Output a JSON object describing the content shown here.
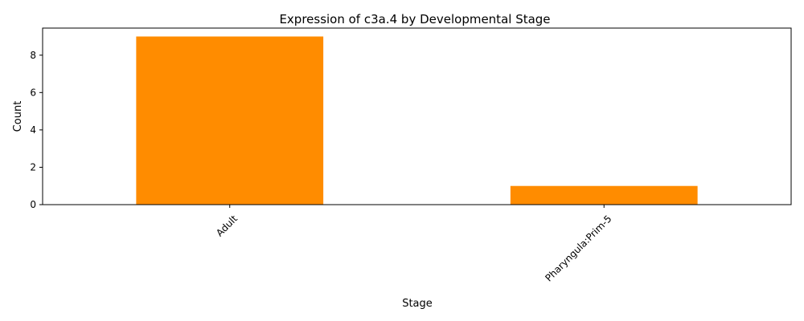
{
  "chart_data": {
    "type": "bar",
    "title": "Expression of c3a.4 by Developmental Stage",
    "xlabel": "Stage",
    "ylabel": "Count",
    "categories": [
      "Adult",
      "Pharyngula:Prim-5"
    ],
    "values": [
      9,
      1
    ],
    "ylim": [
      0,
      9.45
    ],
    "yticks": [
      0,
      2,
      4,
      6,
      8
    ],
    "grid": false,
    "legend": "none",
    "bar_color": "#ff8c00"
  }
}
